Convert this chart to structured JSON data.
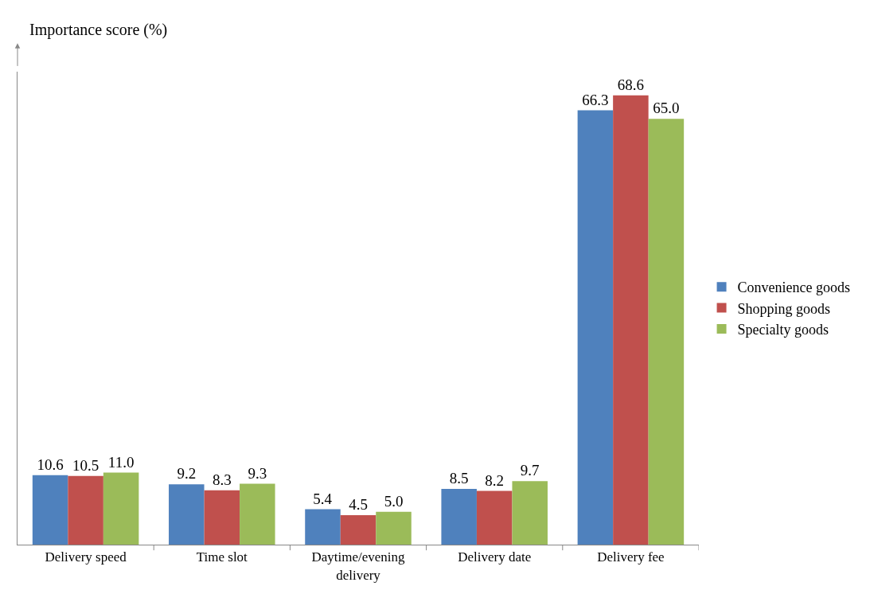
{
  "chart_data": {
    "type": "bar",
    "ylabel": "Importance score (%)",
    "categories": [
      "Delivery speed",
      "Time slot",
      "Daytime/evening delivery",
      "Delivery date",
      "Delivery fee"
    ],
    "series": [
      {
        "name": "Convenience goods",
        "color": "#4f81bd",
        "values": [
          10.6,
          9.2,
          5.4,
          8.5,
          66.3
        ],
        "value_labels": [
          "10.6",
          "9.2",
          "5.4",
          "8.5",
          "66.3"
        ]
      },
      {
        "name": "Shopping goods",
        "color": "#c0504d",
        "values": [
          10.5,
          8.3,
          4.5,
          8.2,
          68.6
        ],
        "value_labels": [
          "10.5",
          "8.3",
          "4.5",
          "8.2",
          "68.6"
        ]
      },
      {
        "name": "Specialty goods",
        "color": "#9bbb59",
        "values": [
          11.0,
          9.3,
          5.0,
          9.7,
          65.0
        ],
        "value_labels": [
          "11.0",
          "9.3",
          "5.0",
          "9.7",
          "65.0"
        ]
      }
    ],
    "grid": false,
    "legend": "right",
    "tick_labels": "x"
  }
}
